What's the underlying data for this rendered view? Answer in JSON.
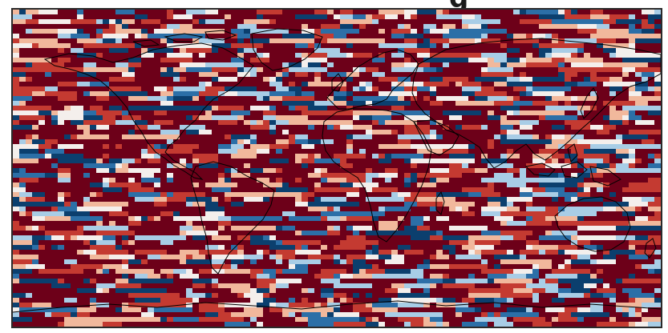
{
  "map": {
    "title_fragment": "g",
    "projection": "plate-carree",
    "coastlines": true,
    "colormap": "RdBu_r",
    "palette": {
      "deep_blue": "#0b3f6e",
      "mid_blue": "#2c6fa7",
      "light_blue": "#a8cde6",
      "pale": "#f4efec",
      "light_red": "#f1b89c",
      "mid_red": "#c43a31",
      "deep_red": "#6d0019",
      "coastline": "#000000",
      "frame": "#2b2b2b"
    }
  }
}
